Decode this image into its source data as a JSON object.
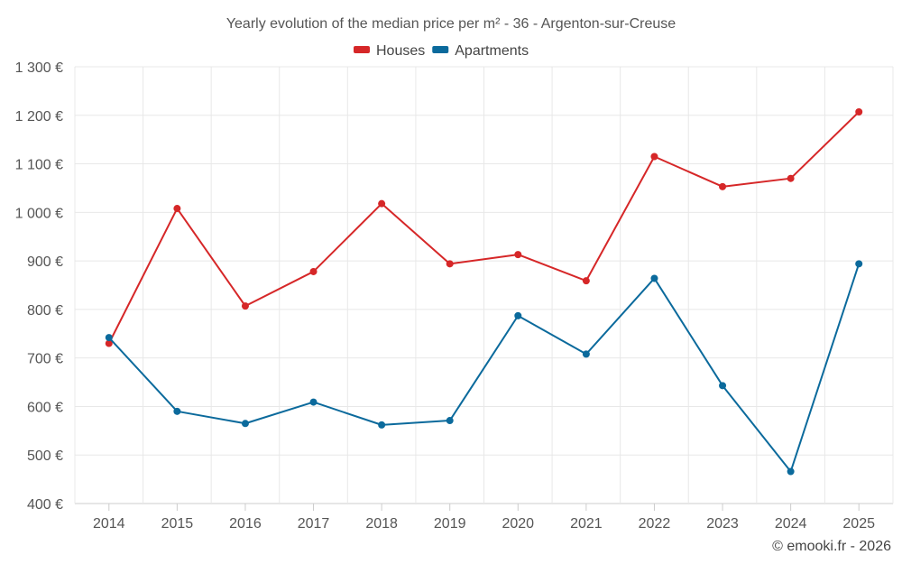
{
  "chart_data": {
    "type": "line",
    "title": "Yearly evolution of the median price per m² - 36 - Argenton-sur-Creuse",
    "xlabel": "",
    "ylabel": "",
    "categories": [
      "2014",
      "2015",
      "2016",
      "2017",
      "2018",
      "2019",
      "2020",
      "2021",
      "2022",
      "2023",
      "2024",
      "2025"
    ],
    "ylim": [
      400,
      1300
    ],
    "yticks": [
      400,
      500,
      600,
      700,
      800,
      900,
      1000,
      1100,
      1200,
      1300
    ],
    "ytick_labels": [
      "400 €",
      "500 €",
      "600 €",
      "700 €",
      "800 €",
      "900 €",
      "1 000 €",
      "1 100 €",
      "1 200 €",
      "1 300 €"
    ],
    "grid": true,
    "legend_position": "top-center",
    "series": [
      {
        "name": "Houses",
        "color": "#d62728",
        "values": [
          730,
          1008,
          807,
          878,
          1018,
          894,
          913,
          859,
          1115,
          1053,
          1070,
          1207
        ]
      },
      {
        "name": "Apartments",
        "color": "#0b6a9c",
        "values": [
          742,
          590,
          565,
          609,
          562,
          571,
          787,
          708,
          864,
          643,
          466,
          894
        ]
      }
    ],
    "credit": "© emooki.fr - 2026"
  }
}
